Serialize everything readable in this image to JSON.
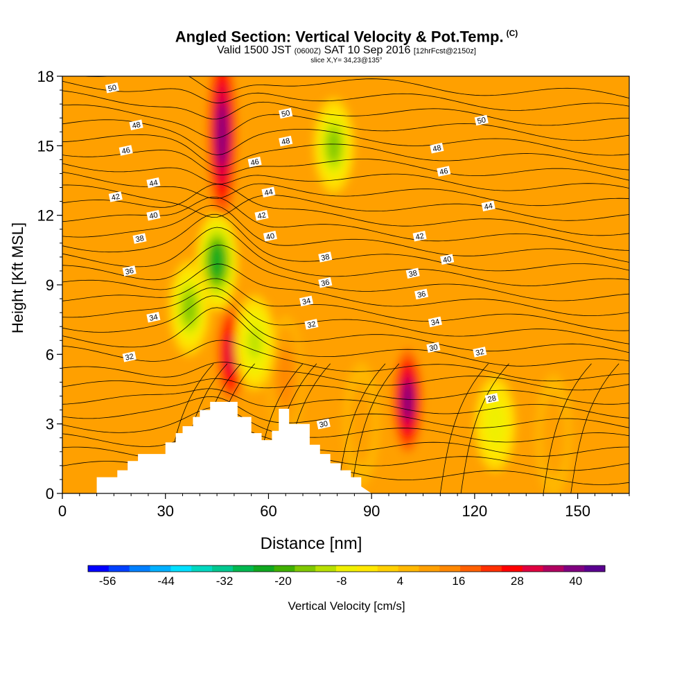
{
  "header": {
    "title": "Angled Section: Vertical Velocity & Pot.Temp.",
    "copyright": "(C)",
    "valid_label": "Valid 1500 JST",
    "valid_utc": "(0600Z)",
    "valid_date": "SAT 10 Sep 2016",
    "forecast": "[12hrFcst@2150z]",
    "slice": "slice X,Y= 34,23@135°"
  },
  "chart_data": {
    "type": "heatmap",
    "title": "Angled Section: Vertical Velocity & Pot.Temp.",
    "xlabel": "Distance [nm]",
    "ylabel": "Height [Kft MSL]",
    "xlim": [
      0,
      165
    ],
    "ylim": [
      0,
      18
    ],
    "xticks": [
      0,
      30,
      60,
      90,
      120,
      150
    ],
    "yticks": [
      0,
      3,
      6,
      9,
      12,
      15,
      18
    ],
    "grid": false,
    "colorbar": {
      "label": "Vertical Velocity [cm/s]",
      "tick_labels": [
        "-56",
        "-44",
        "-32",
        "-20",
        "-8",
        "4",
        "16",
        "28",
        "40"
      ],
      "min": -60,
      "max": 46,
      "colors": [
        "#0000ff",
        "#0040ff",
        "#0080ff",
        "#00b0ff",
        "#00e0ff",
        "#00d8c0",
        "#00c890",
        "#00b850",
        "#10a820",
        "#40b000",
        "#80c800",
        "#b8e000",
        "#f0f000",
        "#ffe800",
        "#ffd000",
        "#ffb800",
        "#ffa000",
        "#ff8800",
        "#ff6000",
        "#ff3000",
        "#ff0000",
        "#e00040",
        "#b00060",
        "#800080",
        "#5a0090"
      ]
    },
    "terrain_profile": {
      "x": [
        0,
        10,
        10,
        16,
        16,
        19,
        19,
        22,
        22,
        30,
        30,
        33,
        33,
        35,
        35,
        38,
        38,
        40,
        40,
        43,
        43,
        51,
        51,
        55,
        55,
        58,
        58,
        61,
        61,
        63,
        63,
        66,
        66,
        72,
        72,
        75,
        75,
        78,
        78,
        81,
        81,
        84,
        84,
        87,
        87,
        90
      ],
      "height_kft": [
        0,
        0,
        0.7,
        0.7,
        1.0,
        1.0,
        1.4,
        1.4,
        1.7,
        1.7,
        2.2,
        2.2,
        2.6,
        2.6,
        2.9,
        2.9,
        3.3,
        3.3,
        3.6,
        3.6,
        3.95,
        3.95,
        3.3,
        3.3,
        2.6,
        2.6,
        2.3,
        2.3,
        2.7,
        2.7,
        3.65,
        3.65,
        3.0,
        3.0,
        2.1,
        2.1,
        1.7,
        1.7,
        1.3,
        1.3,
        1.0,
        1.0,
        0.7,
        0.7,
        0.3,
        0
      ]
    },
    "velocity_features": [
      {
        "kind": "updraft",
        "x": 46.5,
        "y_kft": 15.5,
        "peak_cm_s": 40
      },
      {
        "kind": "updraft",
        "x": 49,
        "y_kft": 6.0,
        "peak_cm_s": 32
      },
      {
        "kind": "updraft",
        "x": 65,
        "y_kft": 5.0,
        "peak_cm_s": 16
      },
      {
        "kind": "updraft",
        "x": 87,
        "y_kft": 3.0,
        "peak_cm_s": 12
      },
      {
        "kind": "updraft",
        "x": 100.5,
        "y_kft": 4.0,
        "peak_cm_s": 40
      },
      {
        "kind": "updraft",
        "x": 143,
        "y_kft": 2.5,
        "peak_cm_s": 12
      },
      {
        "kind": "downdraft",
        "x": 45,
        "y_kft": 10.0,
        "peak_cm_s": -24
      },
      {
        "kind": "downdraft",
        "x": 37,
        "y_kft": 8.0,
        "peak_cm_s": -16
      },
      {
        "kind": "downdraft",
        "x": 79,
        "y_kft": 15.0,
        "peak_cm_s": -16
      },
      {
        "kind": "downdraft",
        "x": 56,
        "y_kft": 6.5,
        "peak_cm_s": -12
      },
      {
        "kind": "downdraft",
        "x": 126,
        "y_kft": 3.0,
        "peak_cm_s": -8
      }
    ],
    "isentropes_label_values": [
      30,
      32,
      34,
      36,
      38,
      40,
      42,
      44,
      46,
      48,
      50
    ],
    "contour_labels": [
      {
        "text": "50",
        "x": 14.5,
        "y": 17.5
      },
      {
        "text": "50",
        "x": 65,
        "y": 16.4
      },
      {
        "text": "50",
        "x": 122,
        "y": 16.1
      },
      {
        "text": "48",
        "x": 21.5,
        "y": 15.9
      },
      {
        "text": "48",
        "x": 65,
        "y": 15.2
      },
      {
        "text": "48",
        "x": 109,
        "y": 14.9
      },
      {
        "text": "46",
        "x": 18.5,
        "y": 14.8
      },
      {
        "text": "46",
        "x": 56,
        "y": 14.3
      },
      {
        "text": "46",
        "x": 111,
        "y": 13.9
      },
      {
        "text": "44",
        "x": 26.5,
        "y": 13.4
      },
      {
        "text": "44",
        "x": 60,
        "y": 13.0
      },
      {
        "text": "44",
        "x": 124,
        "y": 12.4
      },
      {
        "text": "42",
        "x": 15.5,
        "y": 12.8
      },
      {
        "text": "42",
        "x": 58,
        "y": 12.0
      },
      {
        "text": "42",
        "x": 104,
        "y": 11.1
      },
      {
        "text": "40",
        "x": 26.5,
        "y": 12.0
      },
      {
        "text": "40",
        "x": 60.5,
        "y": 11.1
      },
      {
        "text": "40",
        "x": 112,
        "y": 10.1
      },
      {
        "text": "38",
        "x": 22.5,
        "y": 11.0
      },
      {
        "text": "38",
        "x": 76.5,
        "y": 10.2
      },
      {
        "text": "38",
        "x": 102,
        "y": 9.5
      },
      {
        "text": "36",
        "x": 19.5,
        "y": 9.6
      },
      {
        "text": "36",
        "x": 76.5,
        "y": 9.1
      },
      {
        "text": "36",
        "x": 104.5,
        "y": 8.6
      },
      {
        "text": "34",
        "x": 26.5,
        "y": 7.6
      },
      {
        "text": "34",
        "x": 71,
        "y": 8.3
      },
      {
        "text": "34",
        "x": 108.5,
        "y": 7.4
      },
      {
        "text": "32",
        "x": 19.5,
        "y": 5.9
      },
      {
        "text": "32",
        "x": 72.5,
        "y": 7.3
      },
      {
        "text": "32",
        "x": 121.5,
        "y": 6.1
      },
      {
        "text": "30",
        "x": 108,
        "y": 6.3
      },
      {
        "text": "30",
        "x": 76,
        "y": 3.0
      },
      {
        "text": "28",
        "x": 125,
        "y": 4.1
      }
    ]
  }
}
